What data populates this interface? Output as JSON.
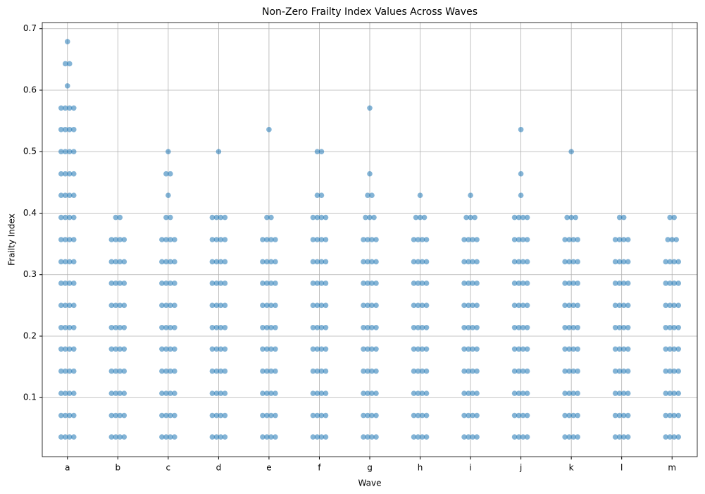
{
  "chart_data": {
    "type": "strip",
    "title": "Non-Zero Frailty Index Values Across Waves",
    "x_label": "Wave",
    "y_label": "Frailty Index",
    "color": "#1f77b4",
    "grid": true,
    "categories": [
      "a",
      "b",
      "c",
      "d",
      "e",
      "f",
      "g",
      "h",
      "i",
      "j",
      "k",
      "l",
      "m"
    ],
    "ylim": [
      0.004,
      0.71
    ],
    "yticks": [
      0.1,
      0.2,
      0.3,
      0.4,
      0.5,
      0.6,
      0.7
    ],
    "values": [
      [
        0.036,
        0.036,
        0.036,
        0.036,
        0.071,
        0.071,
        0.071,
        0.071,
        0.107,
        0.107,
        0.107,
        0.107,
        0.143,
        0.143,
        0.143,
        0.143,
        0.179,
        0.179,
        0.179,
        0.179,
        0.214,
        0.214,
        0.214,
        0.214,
        0.25,
        0.25,
        0.25,
        0.25,
        0.286,
        0.286,
        0.286,
        0.286,
        0.321,
        0.321,
        0.321,
        0.321,
        0.357,
        0.357,
        0.357,
        0.357,
        0.393,
        0.393,
        0.393,
        0.393,
        0.429,
        0.429,
        0.429,
        0.429,
        0.464,
        0.464,
        0.464,
        0.464,
        0.5,
        0.5,
        0.5,
        0.5,
        0.536,
        0.536,
        0.536,
        0.536,
        0.571,
        0.571,
        0.571,
        0.571,
        0.607,
        0.643,
        0.643,
        0.679
      ],
      [
        0.036,
        0.036,
        0.036,
        0.036,
        0.071,
        0.071,
        0.071,
        0.071,
        0.107,
        0.107,
        0.107,
        0.107,
        0.143,
        0.143,
        0.143,
        0.143,
        0.179,
        0.179,
        0.179,
        0.179,
        0.214,
        0.214,
        0.214,
        0.214,
        0.25,
        0.25,
        0.25,
        0.25,
        0.286,
        0.286,
        0.286,
        0.286,
        0.321,
        0.321,
        0.321,
        0.321,
        0.357,
        0.357,
        0.357,
        0.357,
        0.393,
        0.393
      ],
      [
        0.036,
        0.036,
        0.036,
        0.036,
        0.071,
        0.071,
        0.071,
        0.071,
        0.107,
        0.107,
        0.107,
        0.107,
        0.143,
        0.143,
        0.143,
        0.143,
        0.179,
        0.179,
        0.179,
        0.179,
        0.214,
        0.214,
        0.214,
        0.214,
        0.25,
        0.25,
        0.25,
        0.25,
        0.286,
        0.286,
        0.286,
        0.286,
        0.321,
        0.321,
        0.321,
        0.321,
        0.357,
        0.357,
        0.357,
        0.357,
        0.393,
        0.393,
        0.429,
        0.464,
        0.464,
        0.5
      ],
      [
        0.036,
        0.036,
        0.036,
        0.036,
        0.071,
        0.071,
        0.071,
        0.071,
        0.107,
        0.107,
        0.107,
        0.107,
        0.143,
        0.143,
        0.143,
        0.143,
        0.179,
        0.179,
        0.179,
        0.179,
        0.214,
        0.214,
        0.214,
        0.214,
        0.25,
        0.25,
        0.25,
        0.25,
        0.286,
        0.286,
        0.286,
        0.286,
        0.321,
        0.321,
        0.321,
        0.321,
        0.357,
        0.357,
        0.357,
        0.357,
        0.393,
        0.393,
        0.393,
        0.393,
        0.5
      ],
      [
        0.036,
        0.036,
        0.036,
        0.036,
        0.071,
        0.071,
        0.071,
        0.071,
        0.107,
        0.107,
        0.107,
        0.107,
        0.143,
        0.143,
        0.143,
        0.143,
        0.179,
        0.179,
        0.179,
        0.179,
        0.214,
        0.214,
        0.214,
        0.214,
        0.25,
        0.25,
        0.25,
        0.25,
        0.286,
        0.286,
        0.286,
        0.286,
        0.321,
        0.321,
        0.321,
        0.321,
        0.357,
        0.357,
        0.357,
        0.357,
        0.393,
        0.393,
        0.536
      ],
      [
        0.036,
        0.036,
        0.036,
        0.036,
        0.071,
        0.071,
        0.071,
        0.071,
        0.107,
        0.107,
        0.107,
        0.107,
        0.143,
        0.143,
        0.143,
        0.143,
        0.179,
        0.179,
        0.179,
        0.179,
        0.214,
        0.214,
        0.214,
        0.214,
        0.25,
        0.25,
        0.25,
        0.25,
        0.286,
        0.286,
        0.286,
        0.286,
        0.321,
        0.321,
        0.321,
        0.321,
        0.357,
        0.357,
        0.357,
        0.357,
        0.393,
        0.393,
        0.393,
        0.393,
        0.429,
        0.429,
        0.5,
        0.5
      ],
      [
        0.036,
        0.036,
        0.036,
        0.036,
        0.071,
        0.071,
        0.071,
        0.071,
        0.107,
        0.107,
        0.107,
        0.107,
        0.143,
        0.143,
        0.143,
        0.143,
        0.179,
        0.179,
        0.179,
        0.179,
        0.214,
        0.214,
        0.214,
        0.214,
        0.25,
        0.25,
        0.25,
        0.25,
        0.286,
        0.286,
        0.286,
        0.286,
        0.321,
        0.321,
        0.321,
        0.321,
        0.357,
        0.357,
        0.357,
        0.357,
        0.393,
        0.393,
        0.393,
        0.429,
        0.429,
        0.464,
        0.571
      ],
      [
        0.036,
        0.036,
        0.036,
        0.036,
        0.071,
        0.071,
        0.071,
        0.071,
        0.107,
        0.107,
        0.107,
        0.107,
        0.143,
        0.143,
        0.143,
        0.143,
        0.179,
        0.179,
        0.179,
        0.179,
        0.214,
        0.214,
        0.214,
        0.214,
        0.25,
        0.25,
        0.25,
        0.25,
        0.286,
        0.286,
        0.286,
        0.286,
        0.321,
        0.321,
        0.321,
        0.321,
        0.357,
        0.357,
        0.357,
        0.357,
        0.393,
        0.393,
        0.393,
        0.429
      ],
      [
        0.036,
        0.036,
        0.036,
        0.036,
        0.071,
        0.071,
        0.071,
        0.071,
        0.107,
        0.107,
        0.107,
        0.107,
        0.143,
        0.143,
        0.143,
        0.143,
        0.179,
        0.179,
        0.179,
        0.179,
        0.214,
        0.214,
        0.214,
        0.214,
        0.25,
        0.25,
        0.25,
        0.25,
        0.286,
        0.286,
        0.286,
        0.286,
        0.321,
        0.321,
        0.321,
        0.321,
        0.357,
        0.357,
        0.357,
        0.357,
        0.393,
        0.393,
        0.393,
        0.429
      ],
      [
        0.036,
        0.036,
        0.036,
        0.036,
        0.071,
        0.071,
        0.071,
        0.071,
        0.107,
        0.107,
        0.107,
        0.107,
        0.143,
        0.143,
        0.143,
        0.143,
        0.179,
        0.179,
        0.179,
        0.179,
        0.214,
        0.214,
        0.214,
        0.214,
        0.25,
        0.25,
        0.25,
        0.25,
        0.286,
        0.286,
        0.286,
        0.286,
        0.321,
        0.321,
        0.321,
        0.321,
        0.357,
        0.357,
        0.357,
        0.357,
        0.393,
        0.393,
        0.393,
        0.393,
        0.429,
        0.464,
        0.536
      ],
      [
        0.036,
        0.036,
        0.036,
        0.036,
        0.071,
        0.071,
        0.071,
        0.071,
        0.107,
        0.107,
        0.107,
        0.107,
        0.143,
        0.143,
        0.143,
        0.143,
        0.179,
        0.179,
        0.179,
        0.179,
        0.214,
        0.214,
        0.214,
        0.214,
        0.25,
        0.25,
        0.25,
        0.25,
        0.286,
        0.286,
        0.286,
        0.286,
        0.321,
        0.321,
        0.321,
        0.321,
        0.357,
        0.357,
        0.357,
        0.357,
        0.393,
        0.393,
        0.393,
        0.5
      ],
      [
        0.036,
        0.036,
        0.036,
        0.036,
        0.071,
        0.071,
        0.071,
        0.071,
        0.107,
        0.107,
        0.107,
        0.107,
        0.143,
        0.143,
        0.143,
        0.143,
        0.179,
        0.179,
        0.179,
        0.179,
        0.214,
        0.214,
        0.214,
        0.214,
        0.25,
        0.25,
        0.25,
        0.25,
        0.286,
        0.286,
        0.286,
        0.286,
        0.321,
        0.321,
        0.321,
        0.321,
        0.357,
        0.357,
        0.357,
        0.357,
        0.393,
        0.393
      ],
      [
        0.036,
        0.036,
        0.036,
        0.036,
        0.071,
        0.071,
        0.071,
        0.071,
        0.107,
        0.107,
        0.107,
        0.107,
        0.143,
        0.143,
        0.143,
        0.143,
        0.179,
        0.179,
        0.179,
        0.179,
        0.214,
        0.214,
        0.214,
        0.214,
        0.25,
        0.25,
        0.25,
        0.25,
        0.286,
        0.286,
        0.286,
        0.286,
        0.321,
        0.321,
        0.321,
        0.321,
        0.357,
        0.357,
        0.357,
        0.393,
        0.393
      ]
    ]
  }
}
